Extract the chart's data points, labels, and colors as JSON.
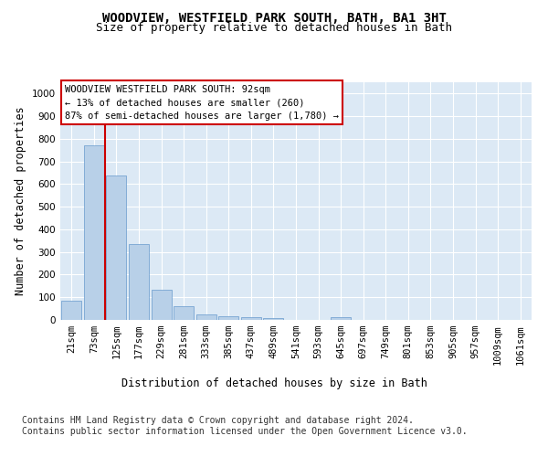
{
  "title": "WOODVIEW, WESTFIELD PARK SOUTH, BATH, BA1 3HT",
  "subtitle": "Size of property relative to detached houses in Bath",
  "xlabel": "Distribution of detached houses by size in Bath",
  "ylabel": "Number of detached properties",
  "bar_labels": [
    "21sqm",
    "73sqm",
    "125sqm",
    "177sqm",
    "229sqm",
    "281sqm",
    "333sqm",
    "385sqm",
    "437sqm",
    "489sqm",
    "541sqm",
    "593sqm",
    "645sqm",
    "697sqm",
    "749sqm",
    "801sqm",
    "853sqm",
    "905sqm",
    "957sqm",
    "1009sqm",
    "1061sqm"
  ],
  "bar_values": [
    85,
    770,
    640,
    335,
    135,
    60,
    24,
    18,
    12,
    8,
    0,
    0,
    12,
    0,
    0,
    0,
    0,
    0,
    0,
    0,
    0
  ],
  "bar_color": "#b8d0e8",
  "bar_edge_color": "#6699cc",
  "vline_x": 1.5,
  "vline_color": "#cc0000",
  "annotation_text": "WOODVIEW WESTFIELD PARK SOUTH: 92sqm\n← 13% of detached houses are smaller (260)\n87% of semi-detached houses are larger (1,780) →",
  "annotation_box_color": "#ffffff",
  "annotation_box_edge": "#cc0000",
  "ylim": [
    0,
    1050
  ],
  "yticks": [
    0,
    100,
    200,
    300,
    400,
    500,
    600,
    700,
    800,
    900,
    1000
  ],
  "footnote": "Contains HM Land Registry data © Crown copyright and database right 2024.\nContains public sector information licensed under the Open Government Licence v3.0.",
  "plot_bg_color": "#dce9f5",
  "title_fontsize": 10,
  "subtitle_fontsize": 9,
  "axis_label_fontsize": 8.5,
  "tick_fontsize": 7.5,
  "footnote_fontsize": 7
}
